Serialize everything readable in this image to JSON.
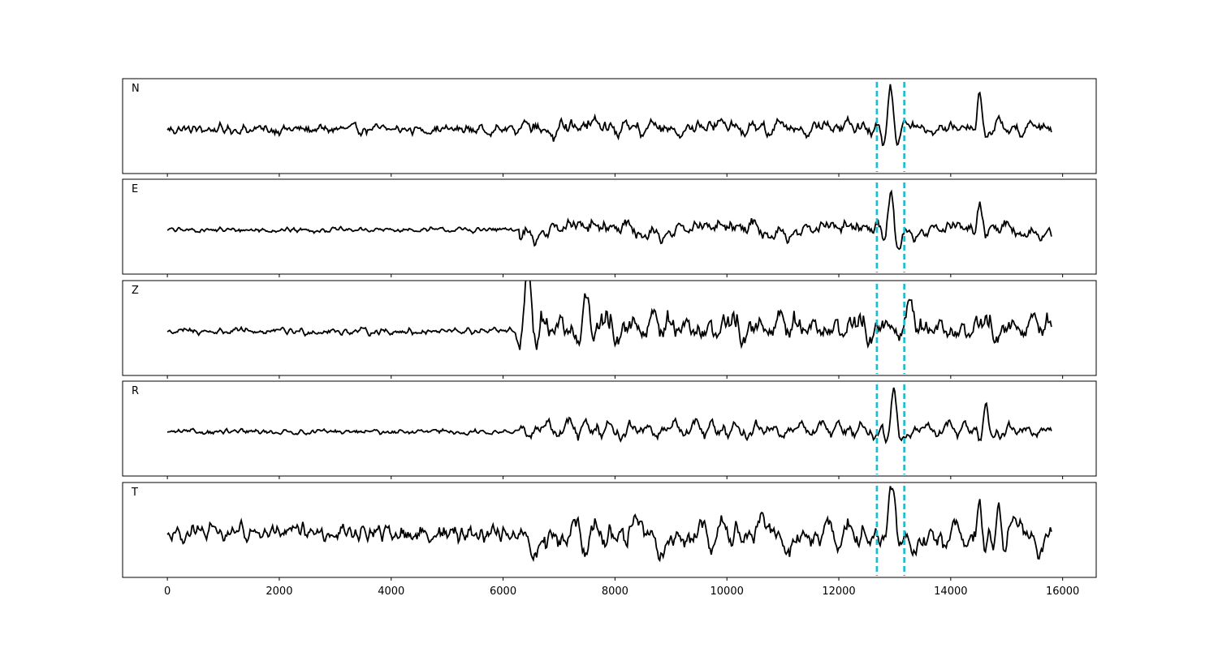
{
  "chart_data": {
    "type": "line",
    "title": "",
    "xlabel": "",
    "ylabel": "",
    "xlim": [
      -800,
      16600
    ],
    "x_ticks": [
      0,
      2000,
      4000,
      6000,
      8000,
      10000,
      12000,
      14000,
      16000
    ],
    "x_tick_labels": [
      "0",
      "2000",
      "4000",
      "6000",
      "8000",
      "10000",
      "12000",
      "14000",
      "16000"
    ],
    "x_start": 0,
    "x_end": 15800,
    "sample_step": 20,
    "grid": false,
    "line_color": "#000000",
    "marker_color": "#17becf",
    "markers": [
      12680,
      13170
    ],
    "panels": [
      {
        "name": "N",
        "noise_amp": 0.1,
        "coda_amp": 0.28,
        "events": [
          {
            "x": 12930,
            "amp": 1.0,
            "width": 140
          },
          {
            "x": 14520,
            "amp": 0.85,
            "width": 110
          },
          {
            "x": 14850,
            "amp": 0.45,
            "width": 120
          }
        ]
      },
      {
        "name": "E",
        "noise_amp": 0.05,
        "coda_amp": 0.3,
        "events": [
          {
            "x": 12930,
            "amp": 1.0,
            "width": 140
          },
          {
            "x": 14520,
            "amp": 0.6,
            "width": 110
          }
        ]
      },
      {
        "name": "Z",
        "noise_amp": 0.07,
        "coda_amp": 0.55,
        "events": [
          {
            "x": 6450,
            "amp": 1.0,
            "width": 160
          },
          {
            "x": 7500,
            "amp": 0.9,
            "width": 150
          },
          {
            "x": 13300,
            "amp": 0.55,
            "width": 160
          }
        ]
      },
      {
        "name": "R",
        "noise_amp": 0.05,
        "coda_amp": 0.3,
        "events": [
          {
            "x": 12980,
            "amp": 1.0,
            "width": 140
          },
          {
            "x": 14620,
            "amp": 0.55,
            "width": 110
          }
        ]
      },
      {
        "name": "T",
        "noise_amp": 0.18,
        "coda_amp": 0.45,
        "events": [
          {
            "x": 12950,
            "amp": 0.95,
            "width": 140
          },
          {
            "x": 14520,
            "amp": 0.9,
            "width": 110
          },
          {
            "x": 14850,
            "amp": 0.85,
            "width": 110
          }
        ]
      }
    ]
  }
}
